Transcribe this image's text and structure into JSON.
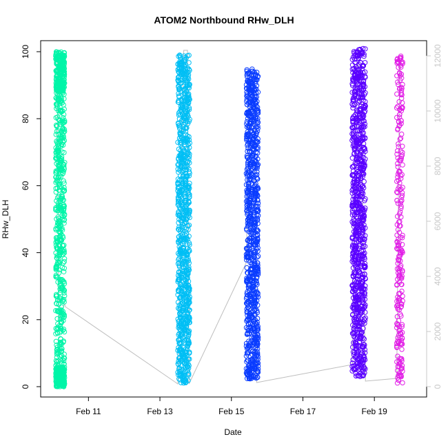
{
  "chart_data": {
    "type": "scatter",
    "title": "ATOM2 Northbound RHw_DLH",
    "xlabel": "Date",
    "ylabel": "RHw_DLH",
    "x_unit": "date",
    "xlim": [
      "2016-02-09T21:00",
      "2016-02-20T06:00"
    ],
    "ylim": [
      0,
      100
    ],
    "x_ticks": [
      {
        "date": "2016-02-11",
        "label": "Feb 11"
      },
      {
        "date": "2016-02-13",
        "label": "Feb 13"
      },
      {
        "date": "2016-02-15",
        "label": "Feb 15"
      },
      {
        "date": "2016-02-17",
        "label": "Feb 17"
      },
      {
        "date": "2016-02-19",
        "label": "Feb 19"
      }
    ],
    "y_ticks": [
      0,
      20,
      40,
      60,
      80,
      100
    ],
    "y2_ticks": [
      0,
      2000,
      4000,
      6000,
      8000,
      10000,
      12000
    ],
    "y2lim": [
      0,
      12000
    ],
    "grid": false,
    "legend": "none",
    "series": [
      {
        "color": "#00f5a8",
        "x_start": "2016-02-10T02:00",
        "x_end": "2016-02-10T08:00",
        "y_min": 0,
        "y_max": 100,
        "density": "high near 0-5 and 90-100"
      },
      {
        "color": "#00bff5",
        "x_start": "2016-02-13T12:00",
        "x_end": "2016-02-13T20:00",
        "y_min": 1,
        "y_max": 99,
        "density": "dense throughout"
      },
      {
        "color": "#0a3cff",
        "x_start": "2016-02-15T10:00",
        "x_end": "2016-02-15T18:00",
        "y_min": 2,
        "y_max": 95,
        "density": "dense throughout"
      },
      {
        "color": "#5a00ff",
        "x_start": "2016-02-18T09:00",
        "x_end": "2016-02-18T18:00",
        "y_min": 3,
        "y_max": 101,
        "density": "dense throughout"
      },
      {
        "color": "#e11ee6",
        "x_start": "2016-02-19T15:00",
        "x_end": "2016-02-19T19:00",
        "y_min": 1,
        "y_max": 99,
        "density": "sparse"
      }
    ],
    "secondary_line": {
      "color": "#bdbdbd",
      "axis": "right",
      "points": [
        {
          "x": "2016-02-10T03:00",
          "y": 12000
        },
        {
          "x": "2016-02-10T04:00",
          "y": 2500
        },
        {
          "x": "2016-02-10T08:00",
          "y": 3000
        },
        {
          "x": "2016-02-10T08:30",
          "y": 2900
        },
        {
          "x": "2016-02-13T12:00",
          "y": 100
        },
        {
          "x": "2016-02-13T16:00",
          "y": 12200
        },
        {
          "x": "2016-02-13T18:30",
          "y": 12200
        },
        {
          "x": "2016-02-13T19:30",
          "y": 100
        },
        {
          "x": "2016-02-15T10:00",
          "y": 4500
        },
        {
          "x": "2016-02-15T12:00",
          "y": 11400
        },
        {
          "x": "2016-02-15T15:00",
          "y": 11200
        },
        {
          "x": "2016-02-15T17:00",
          "y": 150
        },
        {
          "x": "2016-02-18T09:00",
          "y": 800
        },
        {
          "x": "2016-02-18T12:00",
          "y": 11700
        },
        {
          "x": "2016-02-18T15:00",
          "y": 11600
        },
        {
          "x": "2016-02-18T18:00",
          "y": 200
        },
        {
          "x": "2016-02-19T15:00",
          "y": 300
        },
        {
          "x": "2016-02-19T17:00",
          "y": 11800
        }
      ]
    }
  }
}
